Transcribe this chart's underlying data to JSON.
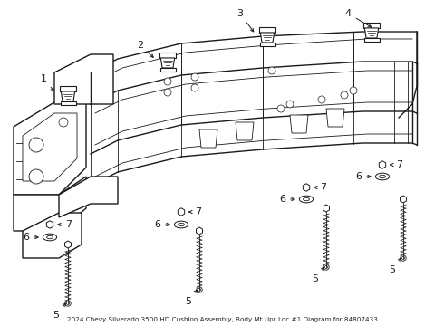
{
  "title": "2024 Chevy Silverado 3500 HD Cushion Assembly, Body Mt Upr Loc #1 Diagram for 84807433",
  "bg_color": "#ffffff",
  "line_color": "#1a1a1a",
  "lw_main": 1.0,
  "lw_thin": 0.6,
  "lw_detail": 0.5,
  "font_size": 8,
  "title_font_size": 5.2,
  "figsize": [
    4.9,
    3.6
  ],
  "dpi": 100
}
